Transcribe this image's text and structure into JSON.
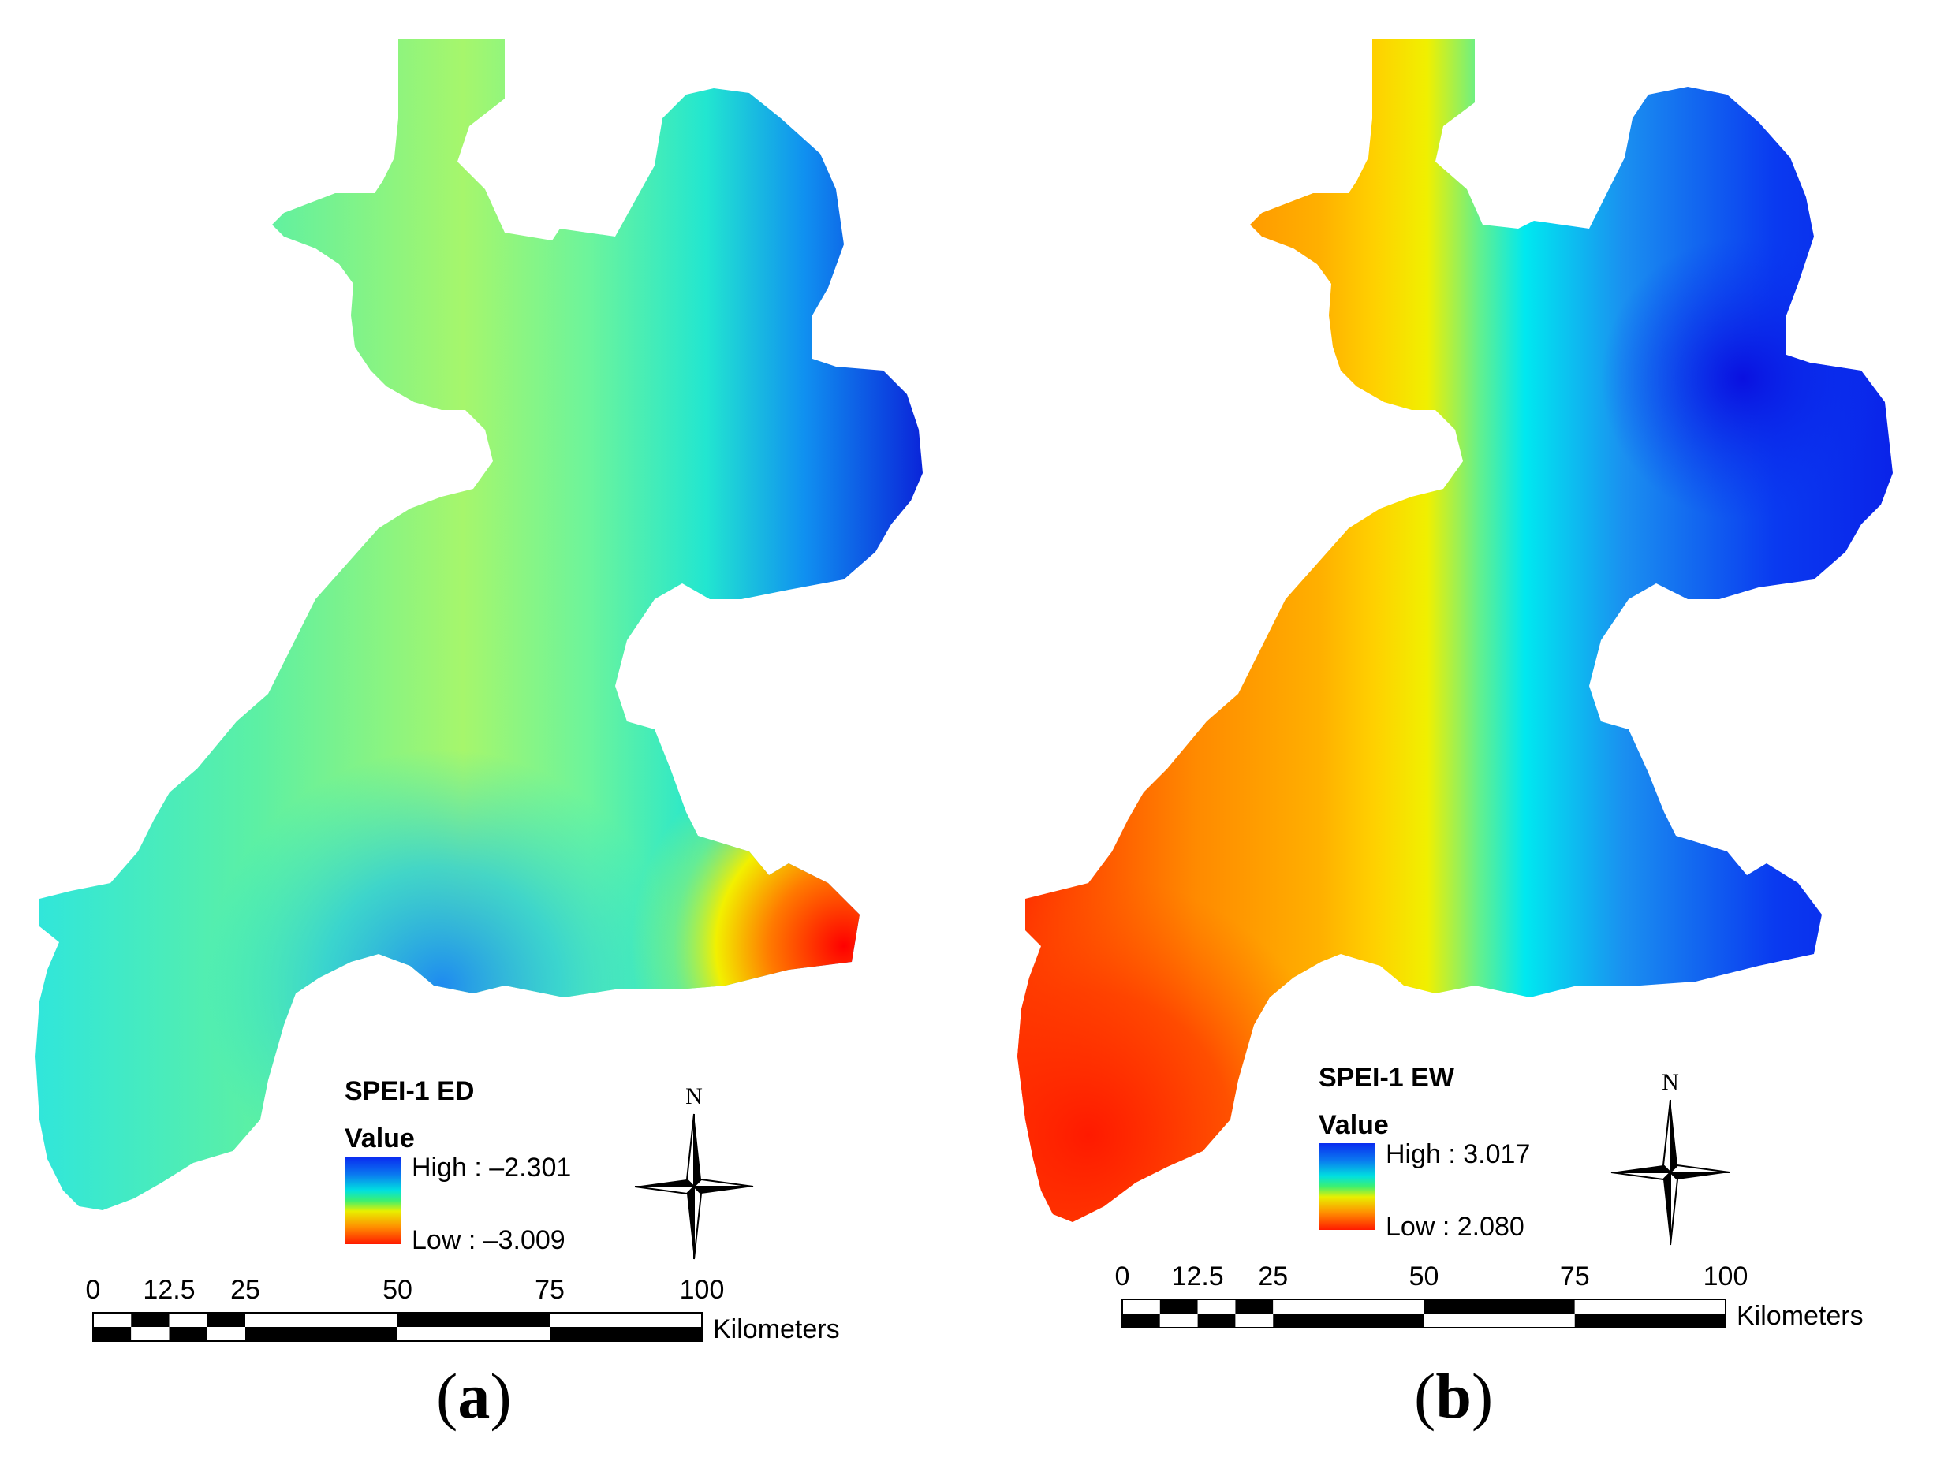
{
  "panels": [
    {
      "id": "a",
      "label_open": "(",
      "label_letter": "a",
      "label_close": ")",
      "legend_title": "SPEI-1 ED",
      "legend_subtitle": "Value",
      "legend_high": "High : –2.301",
      "legend_low": "Low : –3.009",
      "north": "N",
      "scale_ticks": [
        "0",
        "12.5",
        "25",
        "50",
        "75",
        "100"
      ],
      "scale_unit": "Kilometers",
      "colors": {
        "high": "#0a1fe0",
        "low": "#ff0000"
      }
    },
    {
      "id": "b",
      "label_open": "(",
      "label_letter": "b",
      "label_close": ")",
      "legend_title": "SPEI-1 EW",
      "legend_subtitle": "Value",
      "legend_high": "High : 3.017",
      "legend_low": "Low : 2.080",
      "north": "N",
      "scale_ticks": [
        "0",
        "12.5",
        "25",
        "50",
        "75",
        "100"
      ],
      "scale_unit": "Kilometers",
      "colors": {
        "high": "#0a1fe0",
        "low": "#ff0000"
      }
    }
  ]
}
